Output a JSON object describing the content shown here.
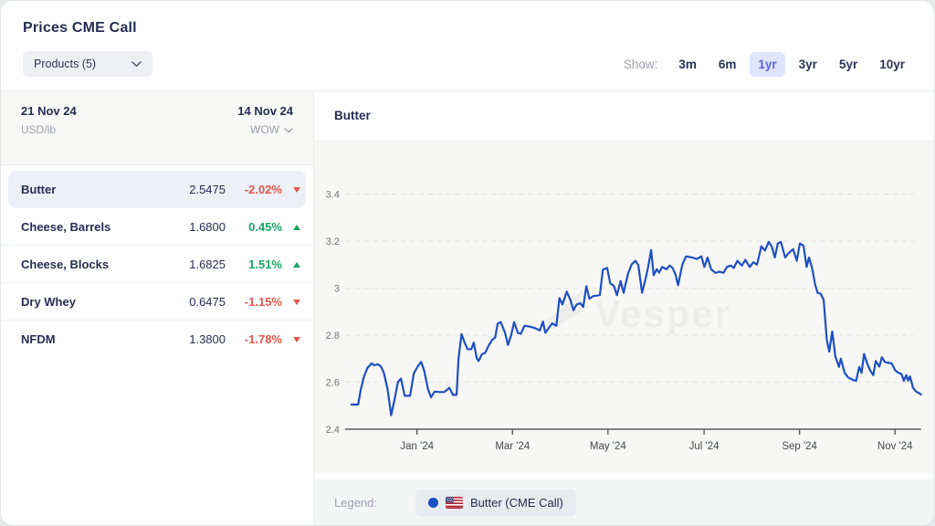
{
  "header": {
    "title": "Prices CME Call",
    "products_button": {
      "label": "Products (5)"
    },
    "show": {
      "label": "Show:",
      "options": [
        {
          "label": "3m"
        },
        {
          "label": "6m"
        },
        {
          "label": "1yr",
          "selected": true
        },
        {
          "label": "3yr"
        },
        {
          "label": "5yr"
        },
        {
          "label": "10yr"
        }
      ]
    }
  },
  "price_table": {
    "header": {
      "date_current": "21 Nov 24",
      "unit": "USD/lb",
      "date_previous": "14 Nov 24",
      "comparison": "WOW"
    },
    "rows": [
      {
        "name": "Butter",
        "price": "2.5475",
        "change": "-2.02%",
        "direction": "down",
        "selected": true
      },
      {
        "name": "Cheese, Barrels",
        "price": "1.6800",
        "change": "0.45%",
        "direction": "up"
      },
      {
        "name": "Cheese, Blocks",
        "price": "1.6825",
        "change": "1.51%",
        "direction": "up"
      },
      {
        "name": "Dry Whey",
        "price": "0.6475",
        "change": "-1.15%",
        "direction": "down"
      },
      {
        "name": "NFDM",
        "price": "1.3800",
        "change": "-1.78%",
        "direction": "down"
      }
    ]
  },
  "chart_panel": {
    "title": "Butter",
    "watermark": "Vesper",
    "legend": {
      "label": "Legend:",
      "items": [
        {
          "label": "Butter (CME Call)",
          "color": "#1d4fc1",
          "flag": "us-flag"
        }
      ]
    }
  },
  "chart_data": {
    "type": "line",
    "title": "Butter",
    "xlabel": "",
    "ylabel": "USD/lb",
    "ylim": [
      2.4,
      3.63
    ],
    "grid": "horizontal-dashed",
    "legend_position": "bottom",
    "yticks": [
      {
        "value": 3.4,
        "label": "3.4",
        "grid": true
      },
      {
        "value": 3.2,
        "label": "3.2",
        "grid": true
      },
      {
        "value": 3.0,
        "label": "3",
        "grid": true
      },
      {
        "value": 2.8,
        "label": "2.8",
        "grid": true
      },
      {
        "value": 2.6,
        "label": "2.6",
        "grid": true
      },
      {
        "value": 2.4,
        "label": "2.4",
        "grid": false
      }
    ],
    "xticks": [
      {
        "f": 0.166,
        "label": "Jan '24"
      },
      {
        "f": 0.32,
        "label": "Mar '24"
      },
      {
        "f": 0.474,
        "label": "May '24"
      },
      {
        "f": 0.629,
        "label": "Jul '24"
      },
      {
        "f": 0.783,
        "label": "Sep '24"
      },
      {
        "f": 0.937,
        "label": "Nov '24"
      }
    ],
    "series": [
      {
        "name": "Butter (CME Call)",
        "color": "#1d4fc1",
        "points": [
          [
            0.061,
            2.505
          ],
          [
            0.072,
            2.505
          ],
          [
            0.076,
            2.565
          ],
          [
            0.081,
            2.62
          ],
          [
            0.087,
            2.66
          ],
          [
            0.094,
            2.68
          ],
          [
            0.098,
            2.672
          ],
          [
            0.104,
            2.676
          ],
          [
            0.109,
            2.668
          ],
          [
            0.114,
            2.64
          ],
          [
            0.12,
            2.572
          ],
          [
            0.126,
            2.46
          ],
          [
            0.131,
            2.52
          ],
          [
            0.137,
            2.6
          ],
          [
            0.142,
            2.615
          ],
          [
            0.148,
            2.542
          ],
          [
            0.157,
            2.542
          ],
          [
            0.163,
            2.638
          ],
          [
            0.17,
            2.67
          ],
          [
            0.175,
            2.686
          ],
          [
            0.18,
            2.648
          ],
          [
            0.186,
            2.572
          ],
          [
            0.191,
            2.536
          ],
          [
            0.197,
            2.56
          ],
          [
            0.205,
            2.558
          ],
          [
            0.213,
            2.558
          ],
          [
            0.221,
            2.576
          ],
          [
            0.227,
            2.546
          ],
          [
            0.233,
            2.546
          ],
          [
            0.236,
            2.7
          ],
          [
            0.241,
            2.805
          ],
          [
            0.246,
            2.768
          ],
          [
            0.251,
            2.74
          ],
          [
            0.257,
            2.74
          ],
          [
            0.261,
            2.768
          ],
          [
            0.266,
            2.7
          ],
          [
            0.269,
            2.69
          ],
          [
            0.274,
            2.718
          ],
          [
            0.28,
            2.726
          ],
          [
            0.285,
            2.754
          ],
          [
            0.291,
            2.78
          ],
          [
            0.296,
            2.79
          ],
          [
            0.3,
            2.848
          ],
          [
            0.305,
            2.856
          ],
          [
            0.312,
            2.81
          ],
          [
            0.317,
            2.758
          ],
          [
            0.322,
            2.8
          ],
          [
            0.327,
            2.855
          ],
          [
            0.333,
            2.81
          ],
          [
            0.338,
            2.806
          ],
          [
            0.344,
            2.84
          ],
          [
            0.353,
            2.836
          ],
          [
            0.361,
            2.83
          ],
          [
            0.369,
            2.82
          ],
          [
            0.374,
            2.858
          ],
          [
            0.378,
            2.81
          ],
          [
            0.383,
            2.828
          ],
          [
            0.389,
            2.85
          ],
          [
            0.396,
            2.84
          ],
          [
            0.401,
            2.958
          ],
          [
            0.406,
            2.93
          ],
          [
            0.413,
            2.985
          ],
          [
            0.419,
            2.95
          ],
          [
            0.424,
            2.906
          ],
          [
            0.429,
            2.93
          ],
          [
            0.435,
            2.936
          ],
          [
            0.44,
            2.92
          ],
          [
            0.445,
            3.008
          ],
          [
            0.45,
            2.955
          ],
          [
            0.456,
            2.966
          ],
          [
            0.467,
            2.97
          ],
          [
            0.472,
            3.078
          ],
          [
            0.479,
            3.086
          ],
          [
            0.484,
            3.02
          ],
          [
            0.49,
            3.01
          ],
          [
            0.495,
            2.97
          ],
          [
            0.501,
            3.03
          ],
          [
            0.506,
            2.98
          ],
          [
            0.513,
            3.06
          ],
          [
            0.519,
            3.1
          ],
          [
            0.525,
            3.116
          ],
          [
            0.53,
            3.098
          ],
          [
            0.536,
            2.98
          ],
          [
            0.541,
            3.03
          ],
          [
            0.546,
            3.09
          ],
          [
            0.551,
            3.162
          ],
          [
            0.555,
            3.055
          ],
          [
            0.56,
            3.08
          ],
          [
            0.564,
            3.066
          ],
          [
            0.569,
            3.09
          ],
          [
            0.576,
            3.08
          ],
          [
            0.581,
            3.096
          ],
          [
            0.586,
            3.086
          ],
          [
            0.591,
            3.055
          ],
          [
            0.595,
            3.012
          ],
          [
            0.602,
            3.1
          ],
          [
            0.608,
            3.135
          ],
          [
            0.618,
            3.13
          ],
          [
            0.626,
            3.124
          ],
          [
            0.633,
            3.135
          ],
          [
            0.638,
            3.09
          ],
          [
            0.643,
            3.13
          ],
          [
            0.649,
            3.08
          ],
          [
            0.656,
            3.065
          ],
          [
            0.663,
            3.07
          ],
          [
            0.669,
            3.065
          ],
          [
            0.675,
            3.09
          ],
          [
            0.681,
            3.096
          ],
          [
            0.686,
            3.086
          ],
          [
            0.692,
            3.116
          ],
          [
            0.699,
            3.096
          ],
          [
            0.705,
            3.12
          ],
          [
            0.712,
            3.09
          ],
          [
            0.718,
            3.11
          ],
          [
            0.724,
            3.1
          ],
          [
            0.731,
            3.178
          ],
          [
            0.737,
            3.16
          ],
          [
            0.743,
            3.196
          ],
          [
            0.748,
            3.178
          ],
          [
            0.753,
            3.13
          ],
          [
            0.758,
            3.19
          ],
          [
            0.763,
            3.196
          ],
          [
            0.77,
            3.13
          ],
          [
            0.776,
            3.15
          ],
          [
            0.783,
            3.166
          ],
          [
            0.789,
            3.116
          ],
          [
            0.794,
            3.19
          ],
          [
            0.8,
            3.18
          ],
          [
            0.805,
            3.09
          ],
          [
            0.809,
            3.13
          ],
          [
            0.814,
            3.086
          ],
          [
            0.819,
            3.016
          ],
          [
            0.823,
            2.98
          ],
          [
            0.828,
            2.976
          ],
          [
            0.833,
            2.95
          ],
          [
            0.838,
            2.78
          ],
          [
            0.842,
            2.73
          ],
          [
            0.847,
            2.815
          ],
          [
            0.852,
            2.71
          ],
          [
            0.858,
            2.665
          ],
          [
            0.861,
            2.7
          ],
          [
            0.867,
            2.64
          ],
          [
            0.873,
            2.62
          ],
          [
            0.88,
            2.61
          ],
          [
            0.886,
            2.606
          ],
          [
            0.891,
            2.665
          ],
          [
            0.895,
            2.64
          ],
          [
            0.899,
            2.72
          ],
          [
            0.904,
            2.68
          ],
          [
            0.909,
            2.65
          ],
          [
            0.914,
            2.63
          ],
          [
            0.918,
            2.69
          ],
          [
            0.924,
            2.666
          ],
          [
            0.928,
            2.706
          ],
          [
            0.933,
            2.686
          ],
          [
            0.939,
            2.682
          ],
          [
            0.944,
            2.68
          ],
          [
            0.95,
            2.65
          ],
          [
            0.955,
            2.64
          ],
          [
            0.96,
            2.635
          ],
          [
            0.964,
            2.606
          ],
          [
            0.968,
            2.63
          ],
          [
            0.971,
            2.606
          ],
          [
            0.974,
            2.625
          ],
          [
            0.979,
            2.576
          ],
          [
            0.984,
            2.56
          ],
          [
            0.988,
            2.555
          ],
          [
            0.992,
            2.548
          ]
        ]
      }
    ]
  },
  "colors": {
    "line_blue": "#1d4fc1",
    "negative_red": "#e4574e",
    "positive_green": "#1aa562",
    "active_range_bg": "#dfe3fc",
    "active_range_text": "#5b63d9",
    "navy_text": "#272d52"
  }
}
